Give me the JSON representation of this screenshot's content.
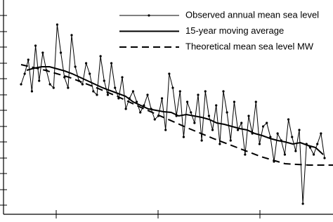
{
  "chart_data": {
    "type": "line",
    "ylim": [
      0,
      305
    ],
    "yticks": [
      13,
      35,
      58,
      80,
      103,
      125,
      148,
      170,
      193,
      215,
      238,
      260,
      283
    ],
    "xlim": [
      0,
      474
    ],
    "xticks": [
      80,
      225,
      370
    ],
    "legend": "upper right",
    "series": [
      {
        "name": "Observed annual mean sea level",
        "color": "#000000",
        "style": "marker",
        "values": [
          185,
          200,
          220,
          175,
          240,
          190,
          230,
          205,
          185,
          180,
          270,
          230,
          195,
          180,
          255,
          210,
          190,
          185,
          215,
          200,
          175,
          170,
          225,
          190,
          170,
          215,
          180,
          165,
          195,
          150,
          165,
          175,
          160,
          145,
          155,
          170,
          150,
          135,
          140,
          165,
          120,
          200,
          180,
          140,
          175,
          110,
          160,
          145,
          130,
          170,
          105,
          175,
          140,
          120,
          155,
          100,
          175,
          145,
          105,
          160,
          120,
          130,
          85,
          140,
          115,
          160,
          100,
          125,
          130,
          110,
          75,
          115,
          105,
          85,
          135,
          110,
          90,
          120,
          15,
          100,
          95,
          85,
          100,
          115,
          80
        ]
      },
      {
        "name": "15-year moving average",
        "color": "#000000",
        "style": "solid",
        "values": [
          205,
          208,
          210,
          210,
          207,
          204,
          200,
          195,
          190,
          185,
          180,
          176,
          172,
          168,
          160,
          155,
          150,
          148,
          146,
          145,
          140,
          142,
          140,
          138,
          135,
          130,
          128,
          125,
          122,
          120,
          115,
          112,
          108,
          105,
          103,
          100,
          102,
          98,
          95,
          85
        ]
      },
      {
        "name": "Theoretical mean sea level MW",
        "color": "#000000",
        "style": "dashed",
        "values": [
          213,
          205,
          195,
          182,
          168,
          152,
          137,
          122,
          108,
          95,
          82,
          72,
          70,
          70
        ]
      }
    ]
  }
}
